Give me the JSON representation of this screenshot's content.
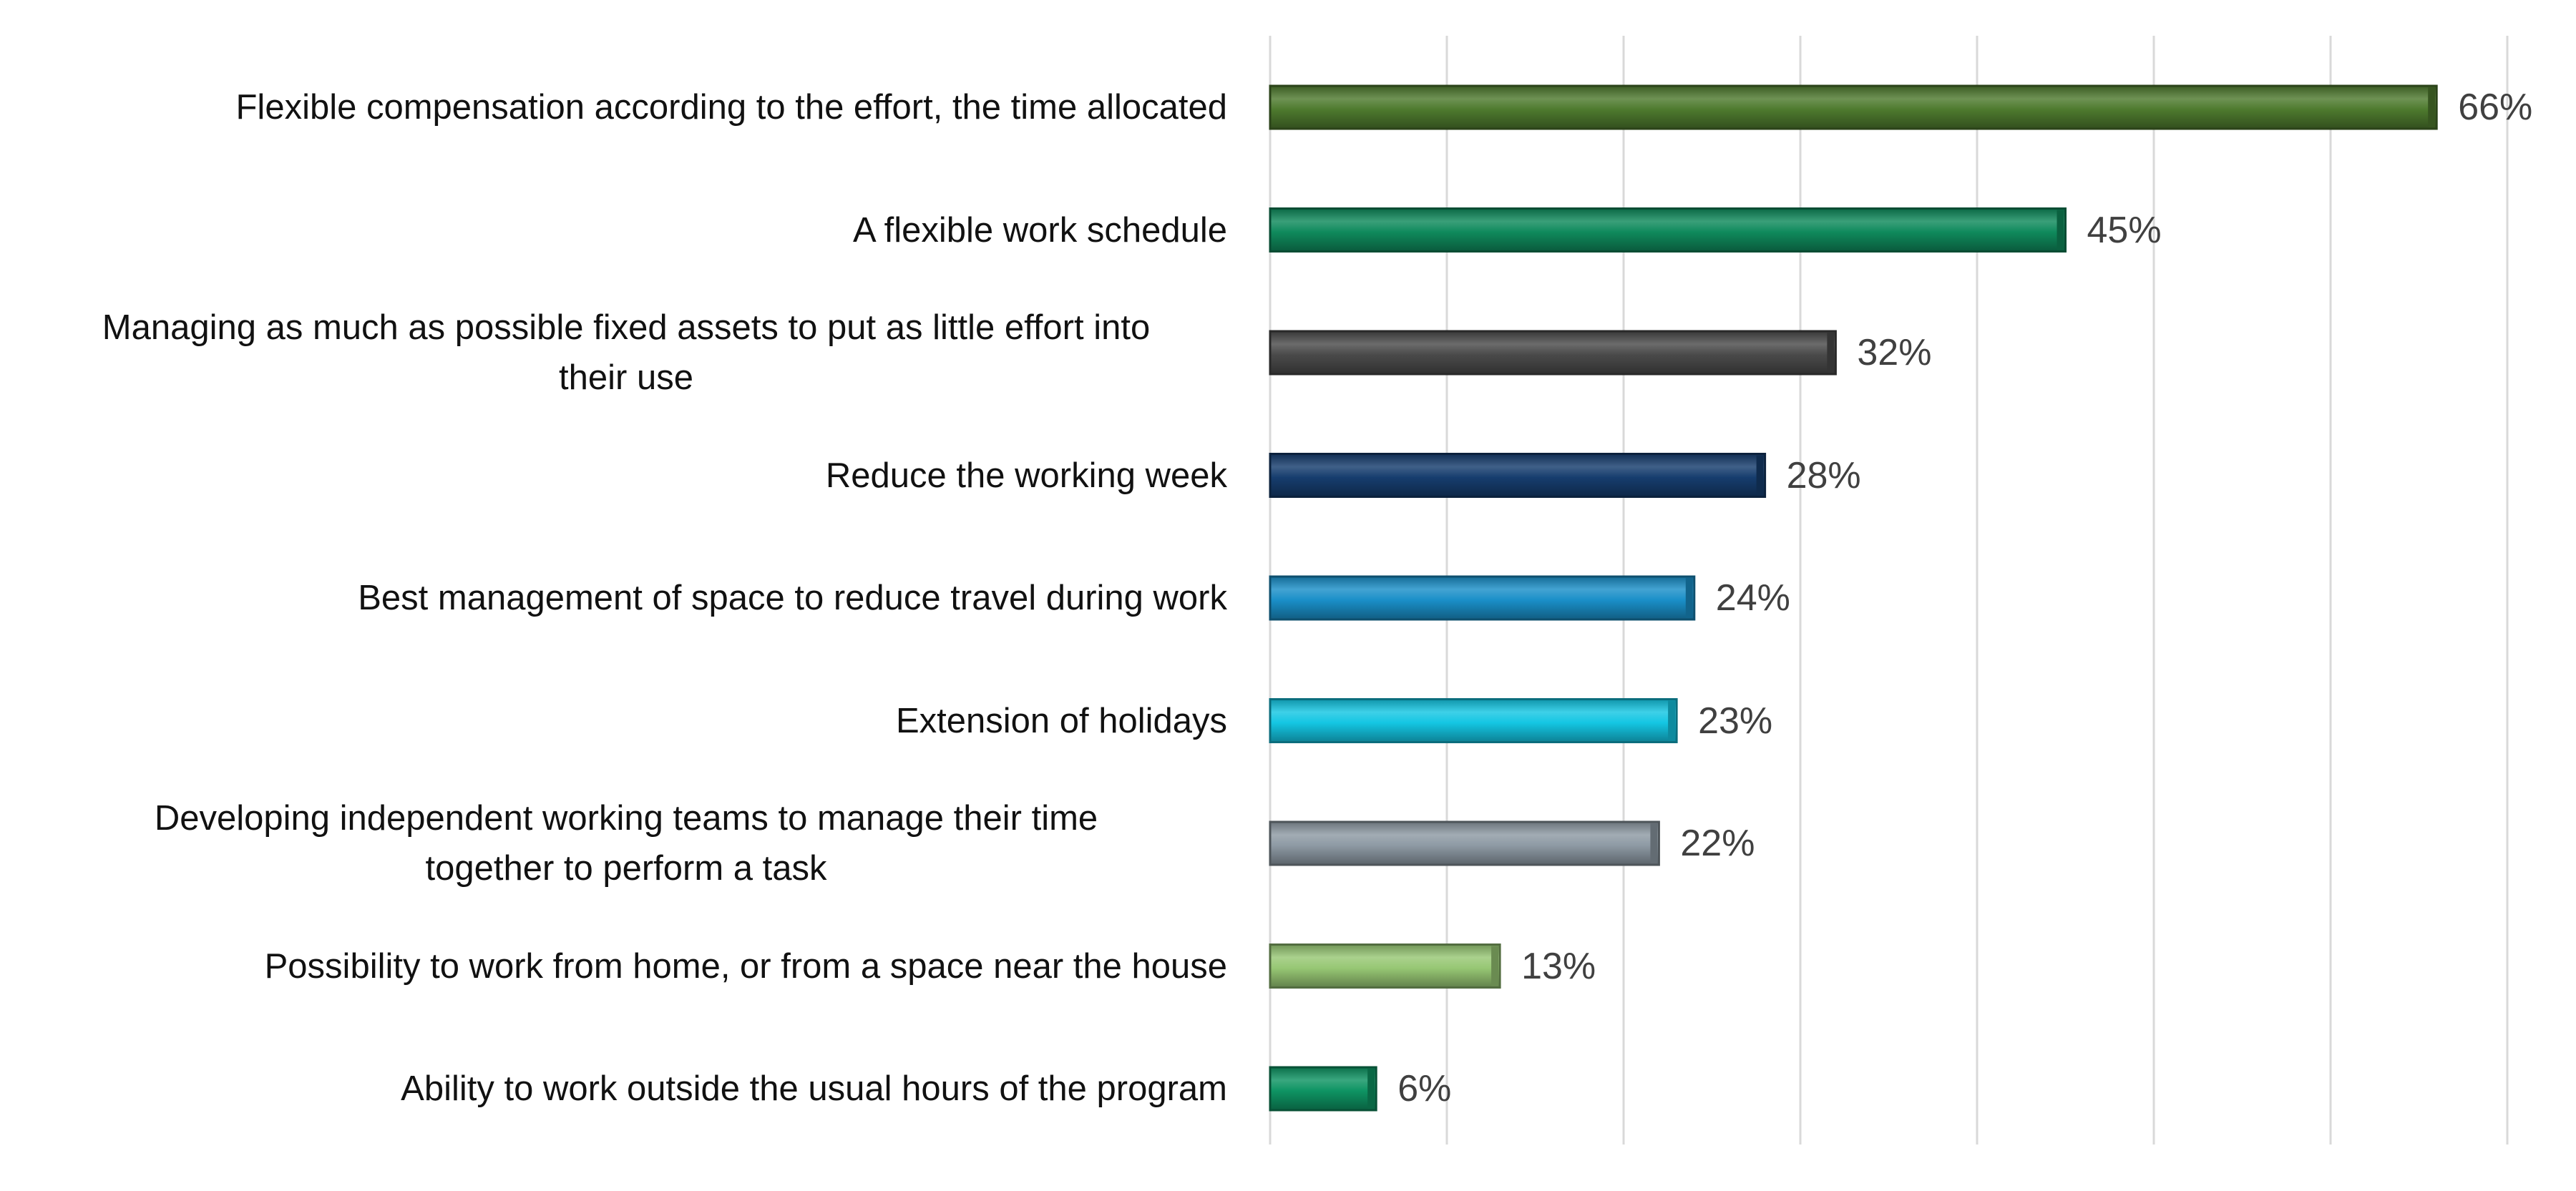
{
  "chart_data": {
    "type": "bar",
    "orientation": "horizontal",
    "categories": [
      [
        "Flexible compensation according to the effort, the time allocated"
      ],
      [
        "A flexible work schedule"
      ],
      [
        "Managing as much as possible fixed assets to put as little effort into",
        "their use"
      ],
      [
        "Reduce the working week"
      ],
      [
        "Best management of space to reduce travel during work"
      ],
      [
        "Extension of holidays"
      ],
      [
        "Developing independent working teams to manage their time",
        "together to perform a task"
      ],
      [
        "Possibility to work from home, or from a space near the house"
      ],
      [
        "Ability to work outside the usual hours of the program"
      ]
    ],
    "values": [
      66,
      45,
      32,
      28,
      24,
      23,
      22,
      13,
      6
    ],
    "value_labels": [
      "66%",
      "45%",
      "32%",
      "28%",
      "24%",
      "23%",
      "22%",
      "13%",
      "6%"
    ],
    "bar_colors": [
      "#4e7a2e",
      "#0f8a5c",
      "#4a4a4a",
      "#163d6e",
      "#1a8fc8",
      "#14c6e3",
      "#8e9aa4",
      "#97c774",
      "#0e9463"
    ],
    "xlim": [
      0,
      70
    ],
    "grid": true,
    "x_axis_tick_labels_shown": false
  }
}
